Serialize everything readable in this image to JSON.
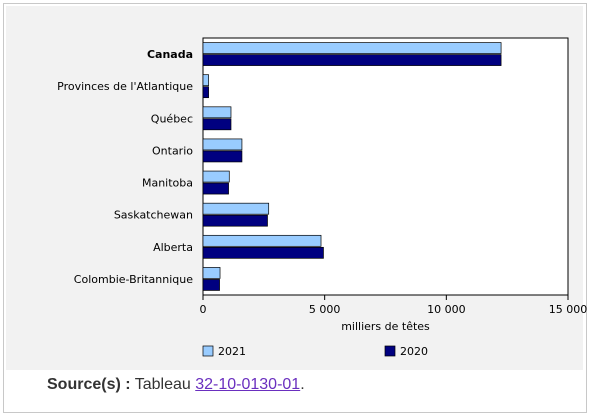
{
  "chart_data": {
    "type": "bar",
    "orientation": "horizontal",
    "categories": [
      "Canada",
      "Provinces de l'Atlantique",
      "Québec",
      "Ontario",
      "Manitoba",
      "Saskatchewan",
      "Alberta",
      "Colombie-Britannique"
    ],
    "bold_category": "Canada",
    "series": [
      {
        "name": "2021",
        "color": "#99ccff",
        "values": [
          12250,
          230,
          1150,
          1600,
          1080,
          2700,
          4850,
          700
        ]
      },
      {
        "name": "2020",
        "color": "#000080",
        "values": [
          12250,
          230,
          1150,
          1600,
          1050,
          2650,
          4950,
          680
        ]
      }
    ],
    "xlabel": "milliers de têtes",
    "xlim": [
      0,
      15000
    ],
    "xticks": [
      0,
      5000,
      10000,
      15000
    ],
    "xtick_labels": [
      "0",
      "5 000",
      "10 000",
      "15 000"
    ],
    "legend_position": "bottom"
  },
  "source": {
    "label": "Source(s) :",
    "text": "Tableau",
    "link": "32-10-0130-01",
    "end": "."
  }
}
